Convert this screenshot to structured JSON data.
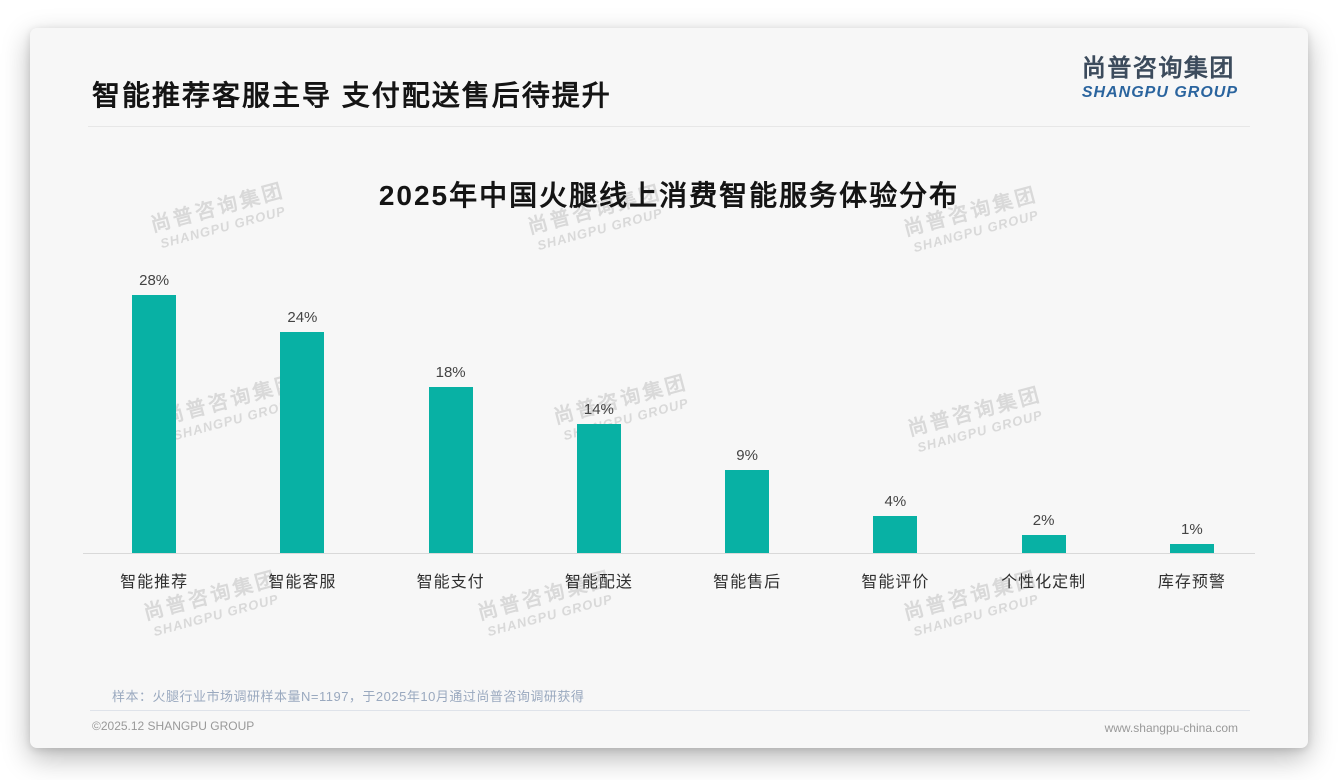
{
  "header": {
    "title": "智能推荐客服主导 支付配送售后待提升",
    "logo_cn": "尚普咨询集团",
    "logo_en": "SHANGPU GROUP"
  },
  "chart_data": {
    "type": "bar",
    "title": "2025年中国火腿线上消费智能服务体验分布",
    "categories": [
      "智能推荐",
      "智能客服",
      "智能支付",
      "智能配送",
      "智能售后",
      "智能评价",
      "个性化定制",
      "库存预警"
    ],
    "values": [
      28,
      24,
      18,
      14,
      9,
      4,
      2,
      1
    ],
    "unit": "%",
    "value_labels": [
      "28%",
      "24%",
      "18%",
      "14%",
      "9%",
      "4%",
      "2%",
      "1%"
    ],
    "ylim": [
      0,
      30
    ],
    "grid": false,
    "legend": "none",
    "bar_color": "#08b1a4"
  },
  "watermark": {
    "line1": "尚普咨询集团",
    "line2": "SHANGPU GROUP"
  },
  "footnote": {
    "sample_note": "样本：火腿行业市场调研样本量N=1197，于2025年10月通过尚普咨询调研获得"
  },
  "footer": {
    "copyright": "©2025.12 SHANGPU GROUP",
    "website": "www.shangpu-china.com"
  },
  "colors": {
    "bar": "#08b1a4",
    "card_background": "#f7f7f7",
    "logo_blue": "#2a649e",
    "logo_dark": "#3c4b5c",
    "watermark_gray": "#d9d9d9"
  }
}
